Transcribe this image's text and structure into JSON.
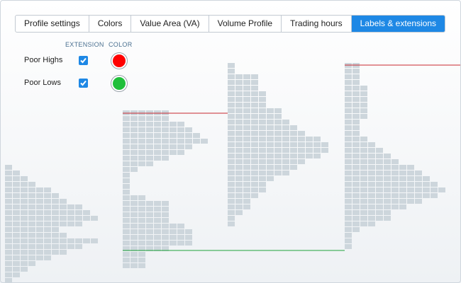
{
  "tabs": [
    {
      "label": "Profile settings",
      "active": false
    },
    {
      "label": "Colors",
      "active": false
    },
    {
      "label": "Value Area (VA)",
      "active": false
    },
    {
      "label": "Volume Profile",
      "active": false
    },
    {
      "label": "Trading hours",
      "active": false
    },
    {
      "label": "Labels & extensions",
      "active": true
    }
  ],
  "columns": {
    "extension": "EXTENSION",
    "color": "COLOR"
  },
  "rows": [
    {
      "label": "Poor Highs",
      "extension_checked": true,
      "color": "#ff0000"
    },
    {
      "label": "Poor Lows",
      "extension_checked": true,
      "color": "#1fbf3a"
    }
  ],
  "colors": {
    "accent": "#1e88e5",
    "profile_block": "#cdd6dc",
    "high_line": "#c8282f",
    "low_line": "#1fa33a"
  },
  "chart_data": {
    "type": "heatmap",
    "profiles": [
      {
        "name": "profile-1",
        "lengths": [
          1,
          2,
          3,
          4,
          6,
          7,
          8,
          10,
          11,
          12,
          10,
          7,
          8,
          12,
          10,
          8,
          6,
          4,
          3,
          2,
          1,
          1
        ]
      },
      {
        "name": "profile-2",
        "lengths": [
          6,
          6,
          8,
          9,
          10,
          11,
          9,
          8,
          6,
          4,
          2,
          1,
          1,
          1,
          1,
          3,
          6,
          6,
          6,
          6,
          8,
          9,
          9,
          9,
          6,
          3,
          3,
          3
        ]
      },
      {
        "name": "profile-3",
        "lengths": [
          1,
          1,
          4,
          4,
          4,
          5,
          5,
          5,
          7,
          7,
          8,
          9,
          10,
          12,
          13,
          13,
          12,
          10,
          9,
          8,
          6,
          5,
          5,
          4,
          3,
          3,
          2,
          1,
          1
        ]
      },
      {
        "name": "profile-4",
        "lengths": [
          2,
          2,
          2,
          2,
          3,
          3,
          3,
          3,
          3,
          3,
          2,
          2,
          2,
          3,
          4,
          5,
          6,
          7,
          9,
          10,
          11,
          12,
          13,
          12,
          10,
          8,
          6,
          6,
          4,
          2,
          1,
          1,
          1
        ]
      }
    ],
    "reference_lines": [
      {
        "name": "poor-high-profile-2",
        "kind": "high"
      },
      {
        "name": "poor-high-profile-4",
        "kind": "high"
      },
      {
        "name": "poor-low-profile-2",
        "kind": "low"
      }
    ]
  }
}
